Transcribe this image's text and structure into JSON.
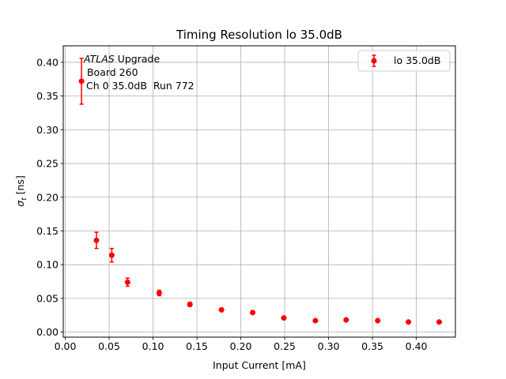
{
  "chart_data": {
    "type": "scatter",
    "title": "Timing Resolution lo 35.0dB",
    "xlabel": "Input Current [mA]",
    "ylabel_main": "σ",
    "ylabel_sub": "t",
    "ylabel_unit": " [ns]",
    "xlim": [
      -0.0023,
      0.4445
    ],
    "ylim": [
      -0.0075,
      0.4245
    ],
    "xticks": [
      0.0,
      0.05,
      0.1,
      0.15,
      0.2,
      0.25,
      0.3,
      0.35,
      0.4
    ],
    "xtick_labels": [
      "0.00",
      "0.05",
      "0.10",
      "0.15",
      "0.20",
      "0.25",
      "0.30",
      "0.35",
      "0.40"
    ],
    "yticks": [
      0.0,
      0.05,
      0.1,
      0.15,
      0.2,
      0.25,
      0.3,
      0.35,
      0.4
    ],
    "ytick_labels": [
      "0.00",
      "0.05",
      "0.10",
      "0.15",
      "0.20",
      "0.25",
      "0.30",
      "0.35",
      "0.40"
    ],
    "grid": true,
    "legend_position": "upper right",
    "color": "#ff0000",
    "series": [
      {
        "name": "lo 35.0dB",
        "x": [
          0.0185,
          0.0355,
          0.053,
          0.071,
          0.107,
          0.142,
          0.178,
          0.2135,
          0.249,
          0.285,
          0.32,
          0.356,
          0.391,
          0.426
        ],
        "y": [
          0.372,
          0.136,
          0.114,
          0.074,
          0.058,
          0.041,
          0.033,
          0.029,
          0.021,
          0.017,
          0.018,
          0.017,
          0.015,
          0.015
        ],
        "yerr": [
          0.034,
          0.012,
          0.01,
          0.006,
          0.004,
          0.003,
          0.002,
          0.002,
          0.001,
          0.001,
          0.001,
          0.001,
          0.001,
          0.001
        ]
      }
    ],
    "annotation": {
      "line1_italic": "ATLAS",
      "line1_rest": " Upgrade",
      "line2": " Board 260",
      "line3": "Ch 0 35.0dB  Run 772"
    }
  }
}
